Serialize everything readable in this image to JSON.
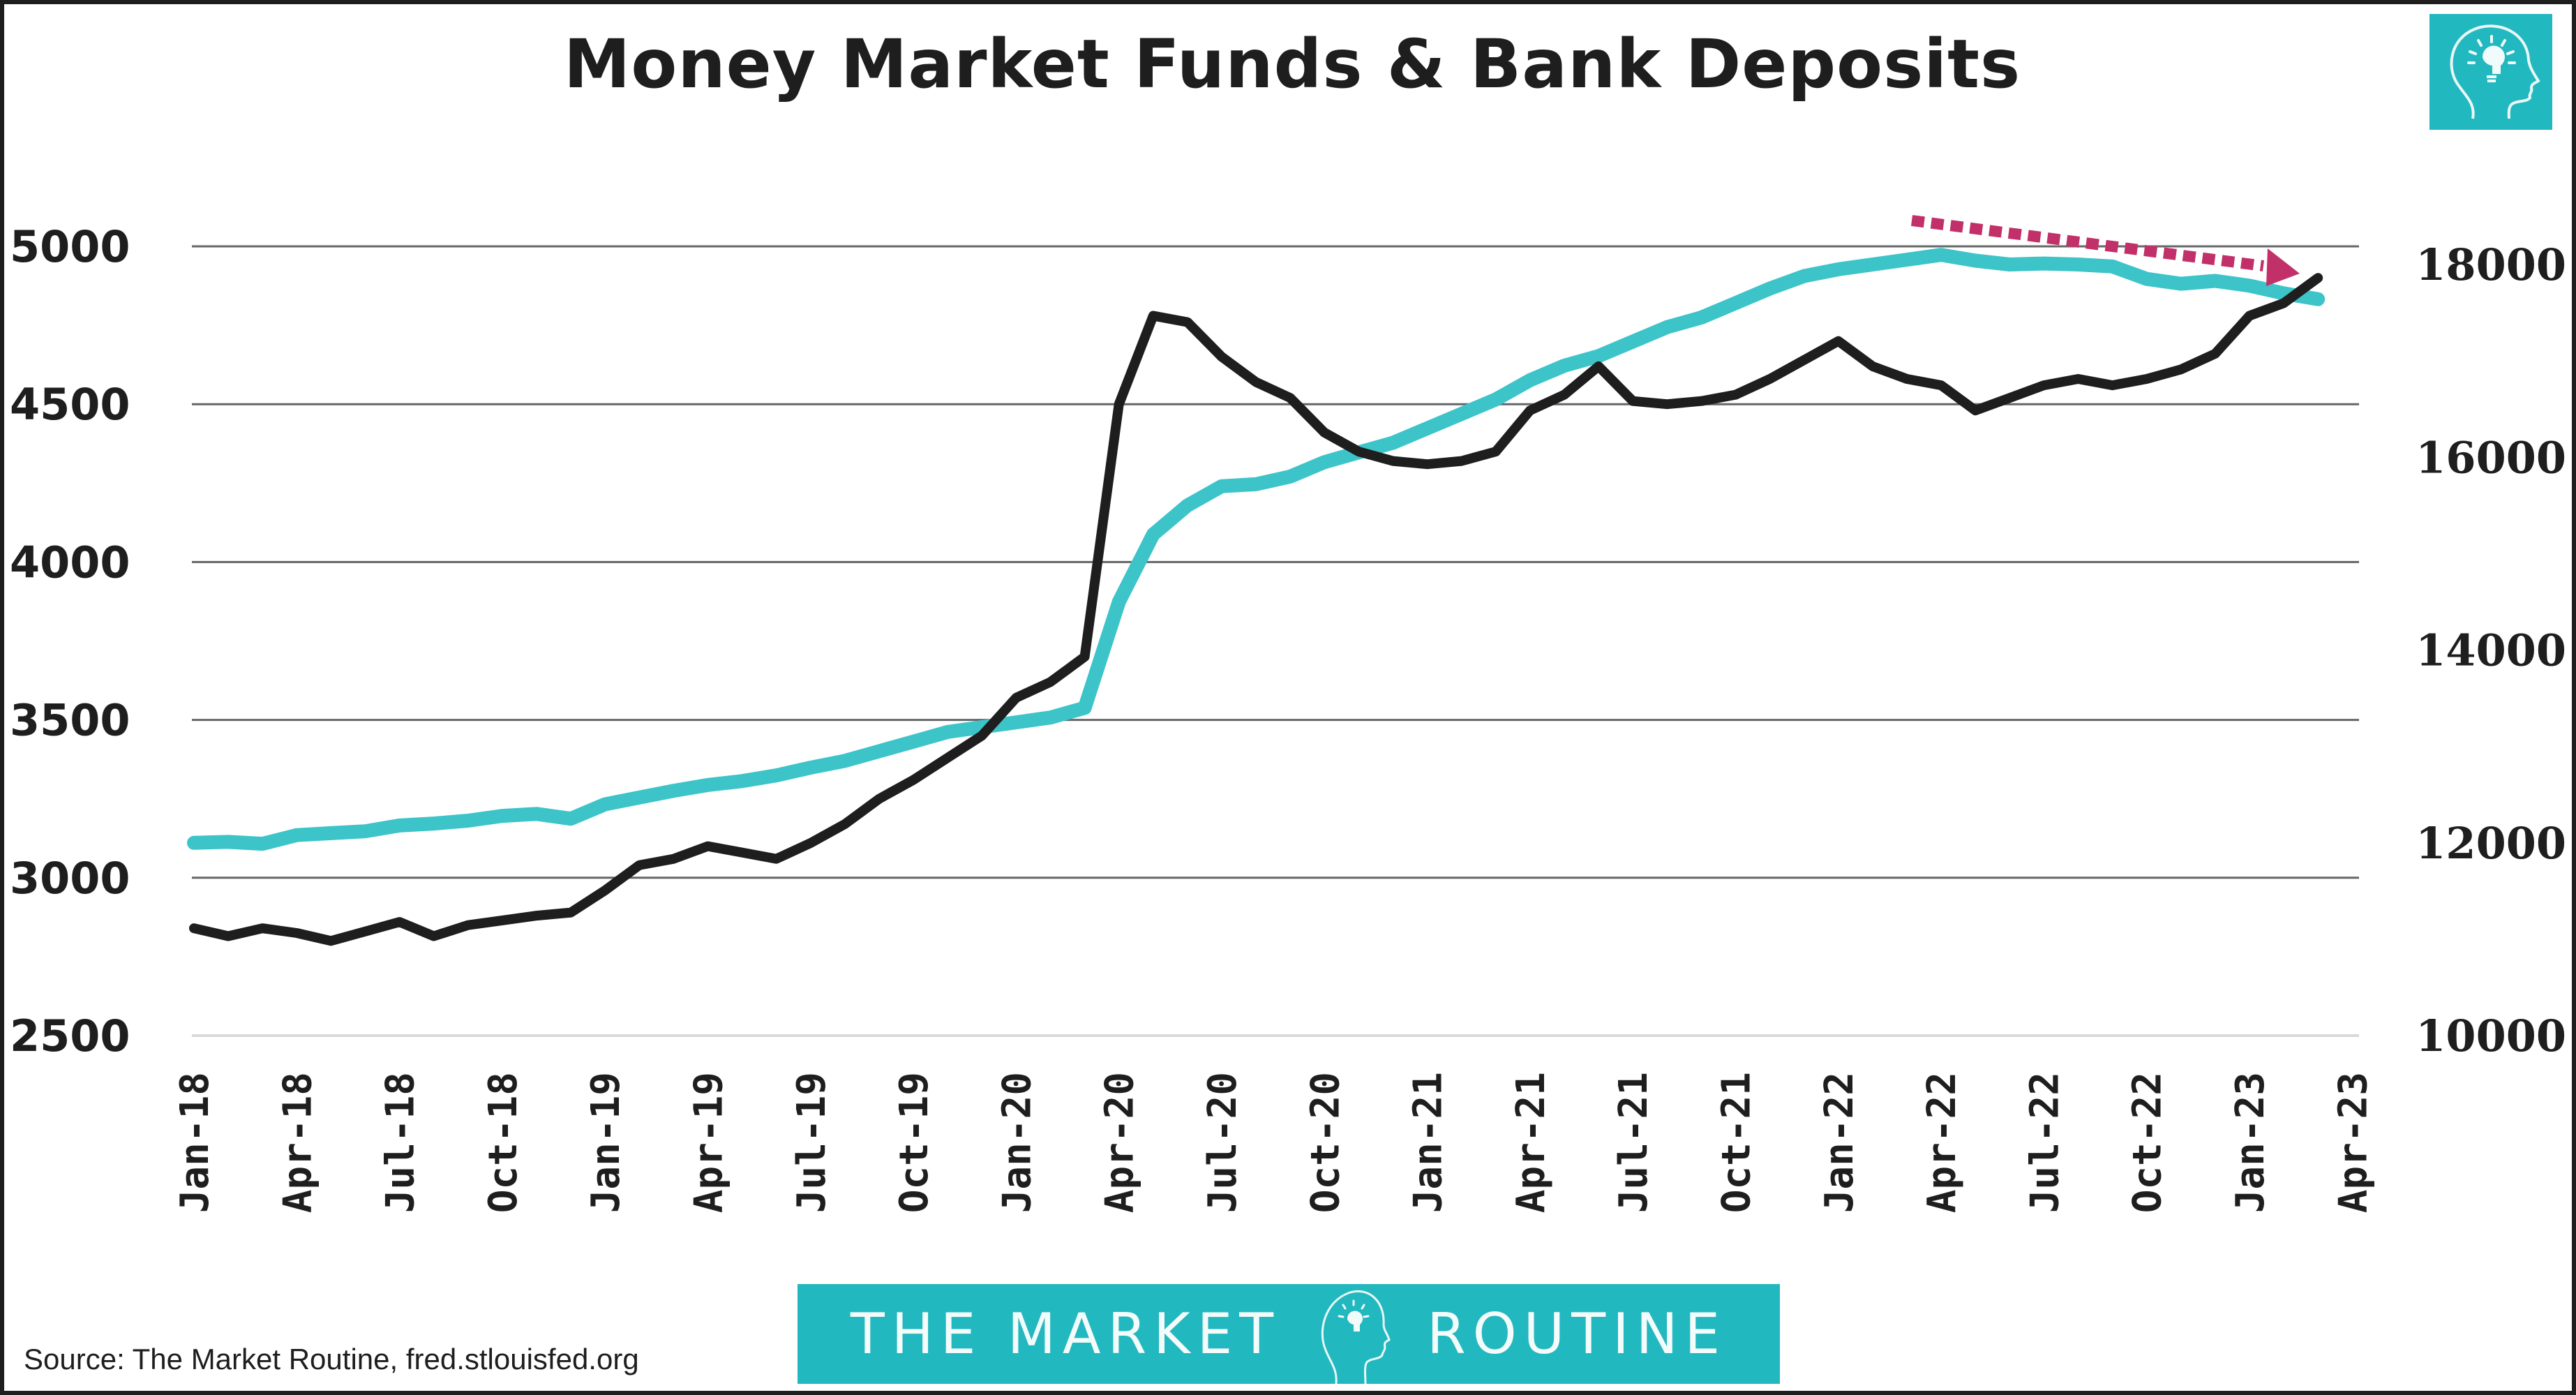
{
  "title": "Money Market Funds & Bank Deposits",
  "source_note": "Source: The Market Routine, fred.stlouisfed.org",
  "banner": {
    "left_text": "THE MARKET",
    "right_text": "ROUTINE",
    "icon": "head-lightbulb-icon"
  },
  "colors": {
    "mmf_line": "#1e1e1e",
    "deposits_line": "#3cc4c9",
    "arrow": "#c2306a",
    "brand_teal": "#22b8bf",
    "gridline": "#666666"
  },
  "chart_data": {
    "type": "line",
    "title": "Money Market Funds & Bank Deposits",
    "xlabel": "",
    "ylabel_left": "",
    "ylabel_right": "",
    "x_tick_labels": [
      "Jan-18",
      "Apr-18",
      "Jul-18",
      "Oct-18",
      "Jan-19",
      "Apr-19",
      "Jul-19",
      "Oct-19",
      "Jan-20",
      "Apr-20",
      "Jul-20",
      "Oct-20",
      "Jan-21",
      "Apr-21",
      "Jul-21",
      "Oct-21",
      "Jan-22",
      "Apr-22",
      "Jul-22",
      "Oct-22",
      "Jan-23",
      "Apr-23"
    ],
    "y_left_ticks": [
      2500,
      3000,
      3500,
      4000,
      4500,
      5000
    ],
    "y_left_range": [
      2500,
      5000
    ],
    "y_right_ticks": [
      10000,
      12000,
      14000,
      16000,
      18000
    ],
    "y_right_range": [
      10000,
      18000
    ],
    "grid": true,
    "legend": "none",
    "x": [
      "Jan-18",
      "Feb-18",
      "Mar-18",
      "Apr-18",
      "May-18",
      "Jun-18",
      "Jul-18",
      "Aug-18",
      "Sep-18",
      "Oct-18",
      "Nov-18",
      "Dec-18",
      "Jan-19",
      "Feb-19",
      "Mar-19",
      "Apr-19",
      "May-19",
      "Jun-19",
      "Jul-19",
      "Aug-19",
      "Sep-19",
      "Oct-19",
      "Nov-19",
      "Dec-19",
      "Jan-20",
      "Feb-20",
      "Mar-20",
      "Apr-20",
      "May-20",
      "Jun-20",
      "Jul-20",
      "Aug-20",
      "Sep-20",
      "Oct-20",
      "Nov-20",
      "Dec-20",
      "Jan-21",
      "Feb-21",
      "Mar-21",
      "Apr-21",
      "May-21",
      "Jun-21",
      "Jul-21",
      "Aug-21",
      "Sep-21",
      "Oct-21",
      "Nov-21",
      "Dec-21",
      "Jan-22",
      "Feb-22",
      "Mar-22",
      "Apr-22",
      "May-22",
      "Jun-22",
      "Jul-22",
      "Aug-22",
      "Sep-22",
      "Oct-22",
      "Nov-22",
      "Dec-22",
      "Jan-23",
      "Feb-23",
      "Mar-23"
    ],
    "series": [
      {
        "name": "Money Market Funds",
        "axis": "left",
        "color": "#1e1e1e",
        "values": [
          2840,
          2815,
          2840,
          2825,
          2800,
          2830,
          2860,
          2815,
          2850,
          2865,
          2880,
          2890,
          2960,
          3040,
          3060,
          3100,
          3080,
          3060,
          3110,
          3170,
          3250,
          3310,
          3380,
          3450,
          3570,
          3620,
          3700,
          4500,
          4780,
          4760,
          4650,
          4570,
          4520,
          4410,
          4350,
          4320,
          4310,
          4320,
          4350,
          4480,
          4530,
          4620,
          4510,
          4500,
          4510,
          4530,
          4580,
          4640,
          4700,
          4620,
          4580,
          4560,
          4480,
          4520,
          4560,
          4580,
          4560,
          4580,
          4610,
          4660,
          4780,
          4820,
          4900
        ]
      },
      {
        "name": "Bank Deposits",
        "axis": "right",
        "color": "#3cc4c9",
        "values": [
          12000,
          12010,
          11990,
          12080,
          12100,
          12120,
          12180,
          12200,
          12230,
          12280,
          12300,
          12250,
          12400,
          12470,
          12540,
          12600,
          12640,
          12700,
          12780,
          12850,
          12950,
          13050,
          13150,
          13200,
          13250,
          13300,
          13400,
          14500,
          15200,
          15500,
          15700,
          15720,
          15800,
          15950,
          16050,
          16150,
          16300,
          16450,
          16600,
          16800,
          16950,
          17050,
          17200,
          17350,
          17450,
          17600,
          17750,
          17880,
          17950,
          18000,
          18050,
          18100,
          18040,
          18000,
          18010,
          18000,
          17980,
          17850,
          17800,
          17830,
          17780,
          17700,
          17640
        ]
      }
    ],
    "annotations": [
      {
        "type": "dotted-arrow",
        "color": "#c2306a",
        "from": "Mar-22 above deposits",
        "to": "Mar-23",
        "meaning": "declining bank deposits trend"
      }
    ]
  }
}
